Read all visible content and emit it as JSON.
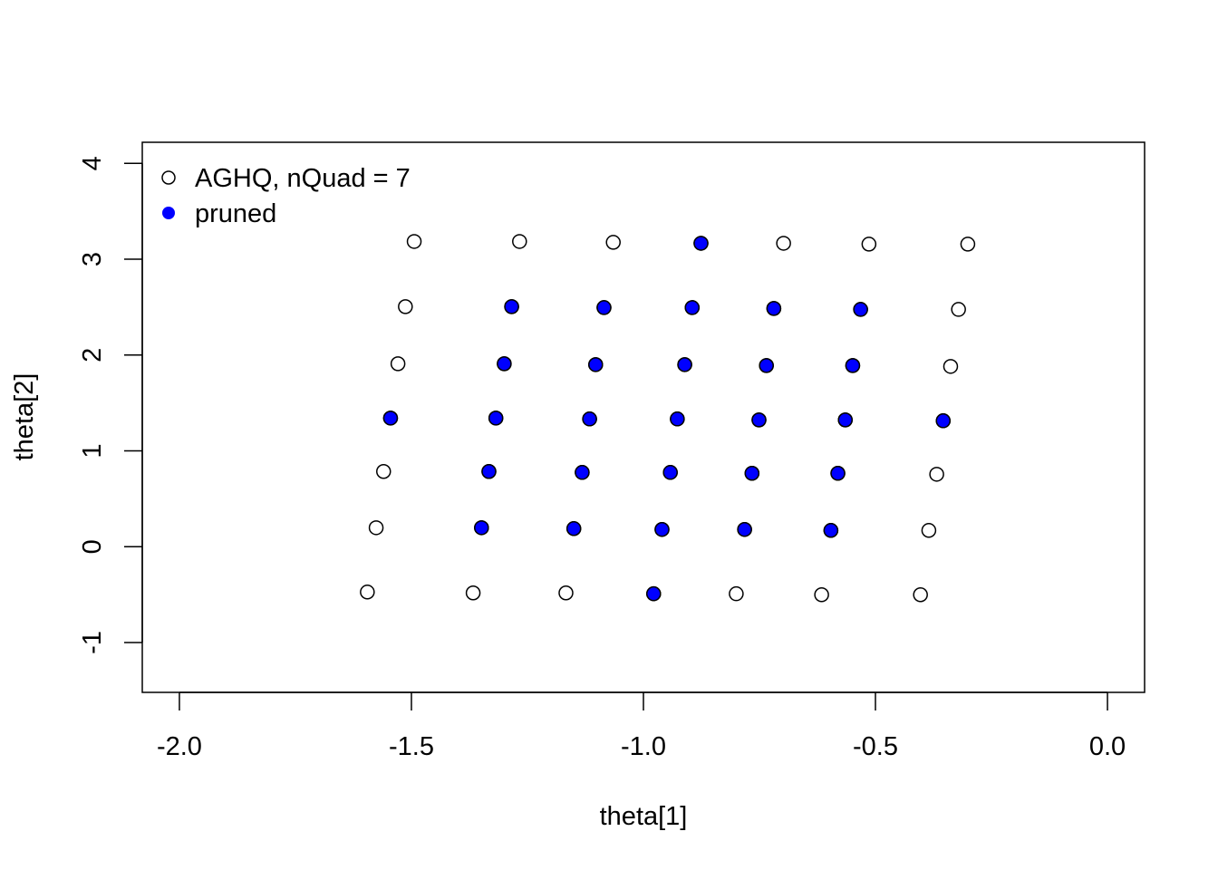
{
  "chart_data": {
    "type": "scatter",
    "title": "",
    "xlabel": "theta[1]",
    "ylabel": "theta[2]",
    "xlim": [
      -2.08,
      0.08
    ],
    "ylim": [
      -1.52,
      4.22
    ],
    "xticks": [
      -2.0,
      -1.5,
      -1.0,
      -0.5,
      0.0
    ],
    "xtick_labels": [
      "-2.0",
      "-1.5",
      "-1.0",
      "-0.5",
      "0.0"
    ],
    "yticks": [
      -1,
      0,
      1,
      2,
      3,
      4
    ],
    "ytick_labels": [
      "-1",
      "0",
      "1",
      "2",
      "3",
      "4"
    ],
    "grid": false,
    "legend_position": "top-left",
    "legend": [
      {
        "label": "AGHQ, nQuad = 7",
        "marker": "open-circle"
      },
      {
        "label": "pruned",
        "marker": "filled-circle",
        "color": "#0000ff"
      }
    ],
    "colors": {
      "pruned": "#0000ff",
      "outline": "#000000"
    },
    "series": [
      {
        "name": "AGHQ, nQuad = 7",
        "points": [
          {
            "x": -1.494,
            "y": 3.185
          },
          {
            "x": -1.267,
            "y": 3.185
          },
          {
            "x": -1.065,
            "y": 3.176
          },
          {
            "x": -0.876,
            "y": 3.166
          },
          {
            "x": -0.698,
            "y": 3.166
          },
          {
            "x": -0.514,
            "y": 3.157
          },
          {
            "x": -0.301,
            "y": 3.157
          },
          {
            "x": -1.513,
            "y": 2.505
          },
          {
            "x": -1.284,
            "y": 2.505
          },
          {
            "x": -1.085,
            "y": 2.495
          },
          {
            "x": -0.895,
            "y": 2.495
          },
          {
            "x": -0.719,
            "y": 2.486
          },
          {
            "x": -0.532,
            "y": 2.476
          },
          {
            "x": -0.321,
            "y": 2.476
          },
          {
            "x": -1.529,
            "y": 1.909
          },
          {
            "x": -1.3,
            "y": 1.909
          },
          {
            "x": -1.103,
            "y": 1.9
          },
          {
            "x": -0.911,
            "y": 1.9
          },
          {
            "x": -0.735,
            "y": 1.89
          },
          {
            "x": -0.549,
            "y": 1.89
          },
          {
            "x": -0.338,
            "y": 1.881
          },
          {
            "x": -1.545,
            "y": 1.342
          },
          {
            "x": -1.318,
            "y": 1.342
          },
          {
            "x": -1.116,
            "y": 1.333
          },
          {
            "x": -0.927,
            "y": 1.333
          },
          {
            "x": -0.751,
            "y": 1.323
          },
          {
            "x": -0.565,
            "y": 1.323
          },
          {
            "x": -0.354,
            "y": 1.314
          },
          {
            "x": -1.56,
            "y": 0.785
          },
          {
            "x": -1.333,
            "y": 0.785
          },
          {
            "x": -1.132,
            "y": 0.775
          },
          {
            "x": -0.942,
            "y": 0.775
          },
          {
            "x": -0.766,
            "y": 0.766
          },
          {
            "x": -0.581,
            "y": 0.766
          },
          {
            "x": -0.368,
            "y": 0.756
          },
          {
            "x": -1.576,
            "y": 0.198
          },
          {
            "x": -1.349,
            "y": 0.198
          },
          {
            "x": -1.15,
            "y": 0.189
          },
          {
            "x": -0.96,
            "y": 0.18
          },
          {
            "x": -0.782,
            "y": 0.18
          },
          {
            "x": -0.596,
            "y": 0.17
          },
          {
            "x": -0.385,
            "y": 0.17
          },
          {
            "x": -1.595,
            "y": -0.473
          },
          {
            "x": -1.367,
            "y": -0.482
          },
          {
            "x": -1.167,
            "y": -0.482
          },
          {
            "x": -0.978,
            "y": -0.491
          },
          {
            "x": -0.8,
            "y": -0.491
          },
          {
            "x": -0.616,
            "y": -0.501
          },
          {
            "x": -0.403,
            "y": -0.501
          }
        ]
      },
      {
        "name": "pruned",
        "points": [
          {
            "x": -0.876,
            "y": 3.166
          },
          {
            "x": -1.284,
            "y": 2.505
          },
          {
            "x": -1.085,
            "y": 2.495
          },
          {
            "x": -0.895,
            "y": 2.495
          },
          {
            "x": -0.719,
            "y": 2.486
          },
          {
            "x": -0.532,
            "y": 2.476
          },
          {
            "x": -1.3,
            "y": 1.909
          },
          {
            "x": -1.103,
            "y": 1.9
          },
          {
            "x": -0.911,
            "y": 1.9
          },
          {
            "x": -0.735,
            "y": 1.89
          },
          {
            "x": -0.549,
            "y": 1.89
          },
          {
            "x": -1.545,
            "y": 1.342
          },
          {
            "x": -1.318,
            "y": 1.342
          },
          {
            "x": -1.116,
            "y": 1.333
          },
          {
            "x": -0.927,
            "y": 1.333
          },
          {
            "x": -0.751,
            "y": 1.323
          },
          {
            "x": -0.565,
            "y": 1.323
          },
          {
            "x": -0.354,
            "y": 1.314
          },
          {
            "x": -1.333,
            "y": 0.785
          },
          {
            "x": -1.132,
            "y": 0.775
          },
          {
            "x": -0.942,
            "y": 0.775
          },
          {
            "x": -0.766,
            "y": 0.766
          },
          {
            "x": -0.581,
            "y": 0.766
          },
          {
            "x": -1.349,
            "y": 0.198
          },
          {
            "x": -1.15,
            "y": 0.189
          },
          {
            "x": -0.96,
            "y": 0.18
          },
          {
            "x": -0.782,
            "y": 0.18
          },
          {
            "x": -0.596,
            "y": 0.17
          },
          {
            "x": -0.978,
            "y": -0.491
          }
        ]
      }
    ]
  }
}
